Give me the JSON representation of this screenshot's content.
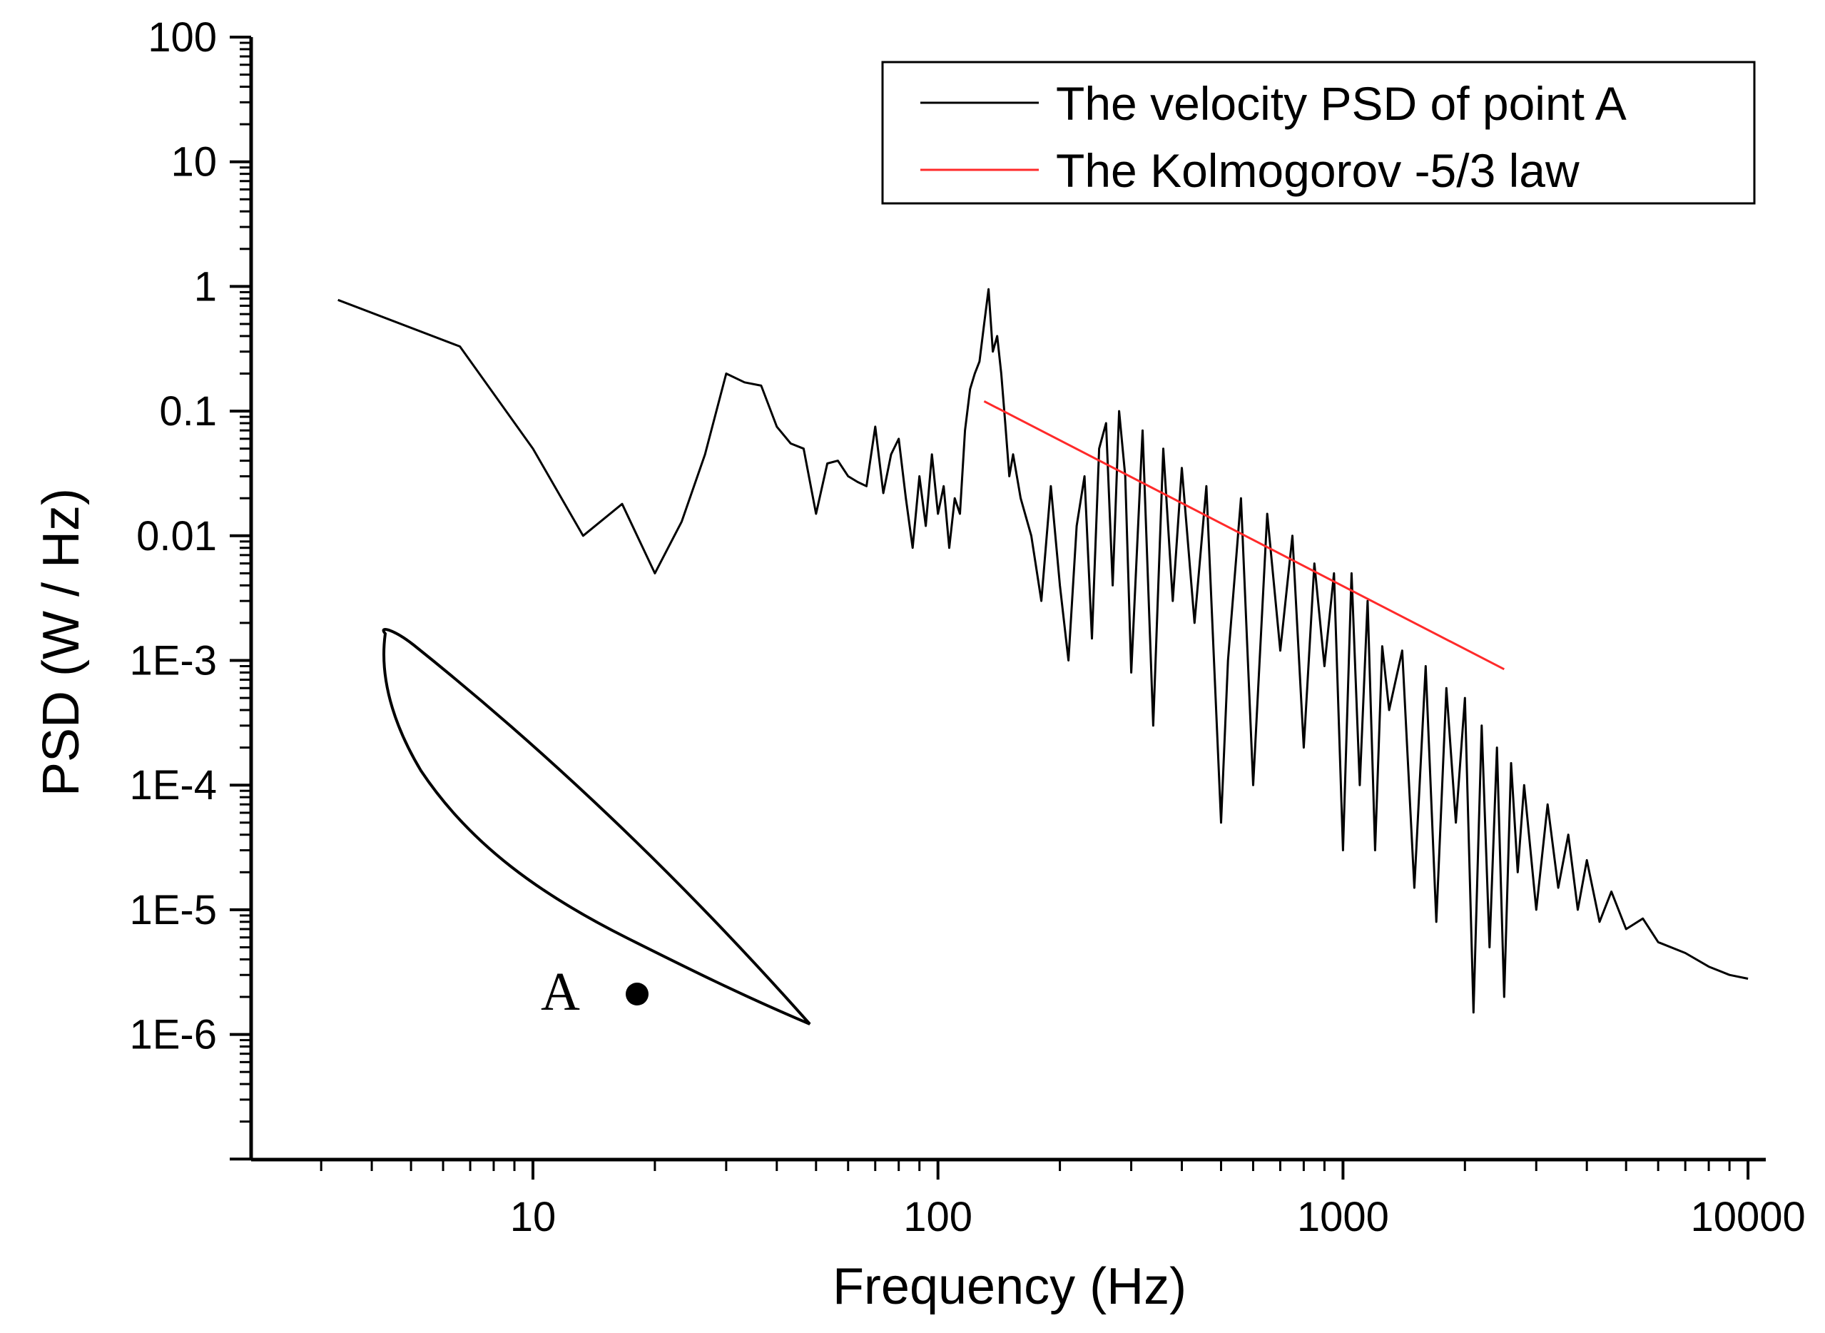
{
  "chart_data": {
    "type": "line",
    "title": "",
    "xlabel": "Frequency   (Hz)",
    "ylabel": "PSD   (W / Hz)",
    "xscale": "log",
    "yscale": "log",
    "xlim": [
      2,
      12000
    ],
    "ylim": [
      3e-08,
      100
    ],
    "x_ticks": [
      {
        "value": 10,
        "label": "10"
      },
      {
        "value": 100,
        "label": "100"
      },
      {
        "value": 1000,
        "label": "1000"
      },
      {
        "value": 10000,
        "label": "10000"
      }
    ],
    "y_ticks": [
      {
        "value": 100,
        "label": "100"
      },
      {
        "value": 10,
        "label": "10"
      },
      {
        "value": 1,
        "label": "1"
      },
      {
        "value": 0.1,
        "label": "0.1"
      },
      {
        "value": 0.01,
        "label": "0.01"
      },
      {
        "value": 0.001,
        "label": "1E-3"
      },
      {
        "value": 0.0001,
        "label": "1E-4"
      },
      {
        "value": 1e-05,
        "label": "1E-5"
      },
      {
        "value": 1e-06,
        "label": "1E-6"
      }
    ],
    "legend_position": "top-right",
    "grid": false,
    "series": [
      {
        "name": "The velocity PSD of point A",
        "color": "#000000",
        "points": [
          [
            3.3,
            0.78
          ],
          [
            6.6,
            0.33
          ],
          [
            10,
            0.05
          ],
          [
            13.3,
            0.01
          ],
          [
            16.6,
            0.018
          ],
          [
            20,
            0.005
          ],
          [
            23.3,
            0.013
          ],
          [
            26.6,
            0.045
          ],
          [
            30,
            0.2
          ],
          [
            33.3,
            0.17
          ],
          [
            36.6,
            0.16
          ],
          [
            40,
            0.075
          ],
          [
            43.3,
            0.055
          ],
          [
            46.6,
            0.05
          ],
          [
            50,
            0.015
          ],
          [
            53.3,
            0.038
          ],
          [
            56.6,
            0.04
          ],
          [
            60,
            0.03
          ],
          [
            63.3,
            0.027
          ],
          [
            66.6,
            0.025
          ],
          [
            70,
            0.075
          ],
          [
            73.3,
            0.022
          ],
          [
            76.6,
            0.045
          ],
          [
            80,
            0.06
          ],
          [
            83.3,
            0.02
          ],
          [
            86.6,
            0.008
          ],
          [
            90,
            0.03
          ],
          [
            93.3,
            0.012
          ],
          [
            96.6,
            0.045
          ],
          [
            100,
            0.015
          ],
          [
            103.3,
            0.025
          ],
          [
            106.6,
            0.008
          ],
          [
            110,
            0.02
          ],
          [
            113.3,
            0.015
          ],
          [
            116.6,
            0.07
          ],
          [
            120,
            0.15
          ],
          [
            123.3,
            0.2
          ],
          [
            126.6,
            0.25
          ],
          [
            130,
            0.5
          ],
          [
            133.3,
            0.95
          ],
          [
            136.6,
            0.3
          ],
          [
            140,
            0.4
          ],
          [
            143.3,
            0.2
          ],
          [
            146.6,
            0.08
          ],
          [
            150,
            0.03
          ],
          [
            153.3,
            0.045
          ],
          [
            156.6,
            0.03
          ],
          [
            160,
            0.02
          ],
          [
            170,
            0.01
          ],
          [
            180,
            0.003
          ],
          [
            190,
            0.025
          ],
          [
            200,
            0.004
          ],
          [
            210,
            0.001
          ],
          [
            220,
            0.012
          ],
          [
            230,
            0.03
          ],
          [
            240,
            0.0015
          ],
          [
            250,
            0.05
          ],
          [
            260,
            0.08
          ],
          [
            270,
            0.004
          ],
          [
            280,
            0.1
          ],
          [
            290,
            0.03
          ],
          [
            300,
            0.0008
          ],
          [
            320,
            0.07
          ],
          [
            340,
            0.0003
          ],
          [
            360,
            0.05
          ],
          [
            380,
            0.003
          ],
          [
            400,
            0.035
          ],
          [
            430,
            0.002
          ],
          [
            460,
            0.025
          ],
          [
            500,
            5e-05
          ],
          [
            520,
            0.001
          ],
          [
            560,
            0.02
          ],
          [
            600,
            0.0001
          ],
          [
            650,
            0.015
          ],
          [
            700,
            0.0012
          ],
          [
            750,
            0.01
          ],
          [
            800,
            0.0002
          ],
          [
            850,
            0.006
          ],
          [
            900,
            0.0009
          ],
          [
            950,
            0.005
          ],
          [
            1000,
            3e-05
          ],
          [
            1050,
            0.005
          ],
          [
            1100,
            0.0001
          ],
          [
            1150,
            0.003
          ],
          [
            1200,
            3e-05
          ],
          [
            1250,
            0.0013
          ],
          [
            1300,
            0.0004
          ],
          [
            1400,
            0.0012
          ],
          [
            1500,
            1.5e-05
          ],
          [
            1600,
            0.0009
          ],
          [
            1700,
            8e-06
          ],
          [
            1800,
            0.0006
          ],
          [
            1900,
            5e-05
          ],
          [
            2000,
            0.0005
          ],
          [
            2100,
            1.5e-06
          ],
          [
            2200,
            0.0003
          ],
          [
            2300,
            5e-06
          ],
          [
            2400,
            0.0002
          ],
          [
            2500,
            2e-06
          ],
          [
            2600,
            0.00015
          ],
          [
            2700,
            2e-05
          ],
          [
            2800,
            0.0001
          ],
          [
            3000,
            1e-05
          ],
          [
            3200,
            7e-05
          ],
          [
            3400,
            1.5e-05
          ],
          [
            3600,
            4e-05
          ],
          [
            3800,
            1e-05
          ],
          [
            4000,
            2.5e-05
          ],
          [
            4300,
            8e-06
          ],
          [
            4600,
            1.4e-05
          ],
          [
            5000,
            7e-06
          ],
          [
            5500,
            8.5e-06
          ],
          [
            6000,
            5.5e-06
          ],
          [
            7000,
            4.5e-06
          ],
          [
            8000,
            3.5e-06
          ],
          [
            9000,
            3e-06
          ],
          [
            10000,
            2.8e-06
          ]
        ]
      },
      {
        "name": "The Kolmogorov -5/3 law",
        "color": "#ff2a2a",
        "points": [
          [
            130,
            0.12
          ],
          [
            2500,
            0.00085
          ]
        ]
      }
    ],
    "annotation": {
      "label": "A"
    }
  }
}
